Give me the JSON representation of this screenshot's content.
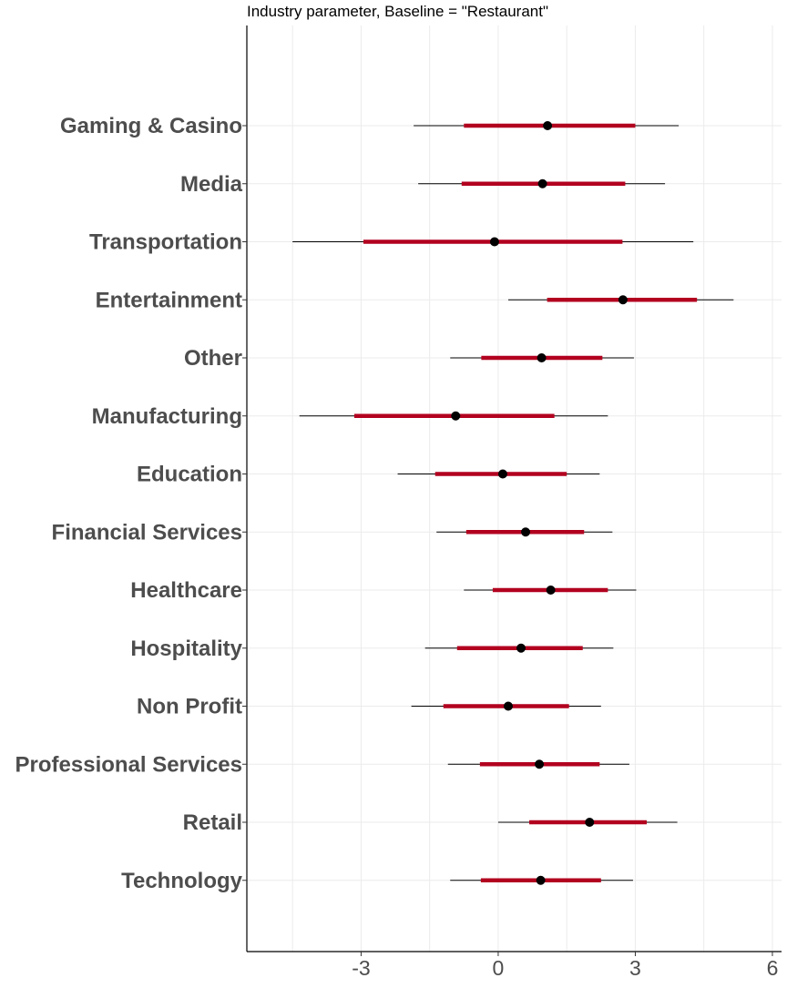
{
  "chart_data": {
    "type": "interval",
    "title": "Industry parameter, Baseline = \"Restaurant\"",
    "xlabel": "",
    "ylabel": "",
    "xlim": [
      -5.5,
      6.2
    ],
    "xticks": [
      -3,
      0,
      3,
      6
    ],
    "xtick_labels": [
      "-3",
      "0",
      "3",
      "6"
    ],
    "grid": true,
    "colors": {
      "inner_interval": "#b2001f",
      "outer_interval": "#000000",
      "point": "#000000",
      "label": "#4d4d4d"
    },
    "series": [
      {
        "category": "Gaming & Casino",
        "estimate": 1.08,
        "inner": [
          -0.75,
          3.0
        ],
        "outer": [
          -1.85,
          3.95
        ]
      },
      {
        "category": "Media",
        "estimate": 0.97,
        "inner": [
          -0.8,
          2.78
        ],
        "outer": [
          -1.75,
          3.65
        ]
      },
      {
        "category": "Transportation",
        "estimate": -0.08,
        "inner": [
          -2.95,
          2.72
        ],
        "outer": [
          -4.5,
          4.27
        ]
      },
      {
        "category": "Entertainment",
        "estimate": 2.73,
        "inner": [
          1.07,
          4.35
        ],
        "outer": [
          0.22,
          5.15
        ]
      },
      {
        "category": "Other",
        "estimate": 0.95,
        "inner": [
          -0.37,
          2.28
        ],
        "outer": [
          -1.05,
          2.97
        ]
      },
      {
        "category": "Manufacturing",
        "estimate": -0.93,
        "inner": [
          -3.15,
          1.23
        ],
        "outer": [
          -4.35,
          2.4
        ]
      },
      {
        "category": "Education",
        "estimate": 0.1,
        "inner": [
          -1.38,
          1.5
        ],
        "outer": [
          -2.2,
          2.22
        ]
      },
      {
        "category": "Financial Services",
        "estimate": 0.6,
        "inner": [
          -0.7,
          1.88
        ],
        "outer": [
          -1.35,
          2.5
        ]
      },
      {
        "category": "Healthcare",
        "estimate": 1.15,
        "inner": [
          -0.12,
          2.4
        ],
        "outer": [
          -0.75,
          3.02
        ]
      },
      {
        "category": "Hospitality",
        "estimate": 0.5,
        "inner": [
          -0.9,
          1.85
        ],
        "outer": [
          -1.6,
          2.52
        ]
      },
      {
        "category": "Non Profit",
        "estimate": 0.22,
        "inner": [
          -1.2,
          1.55
        ],
        "outer": [
          -1.9,
          2.25
        ]
      },
      {
        "category": "Professional Services",
        "estimate": 0.9,
        "inner": [
          -0.4,
          2.22
        ],
        "outer": [
          -1.1,
          2.87
        ]
      },
      {
        "category": "Retail",
        "estimate": 2.0,
        "inner": [
          0.68,
          3.25
        ],
        "outer": [
          0.0,
          3.92
        ]
      },
      {
        "category": "Technology",
        "estimate": 0.93,
        "inner": [
          -0.38,
          2.25
        ],
        "outer": [
          -1.05,
          2.95
        ]
      }
    ]
  }
}
